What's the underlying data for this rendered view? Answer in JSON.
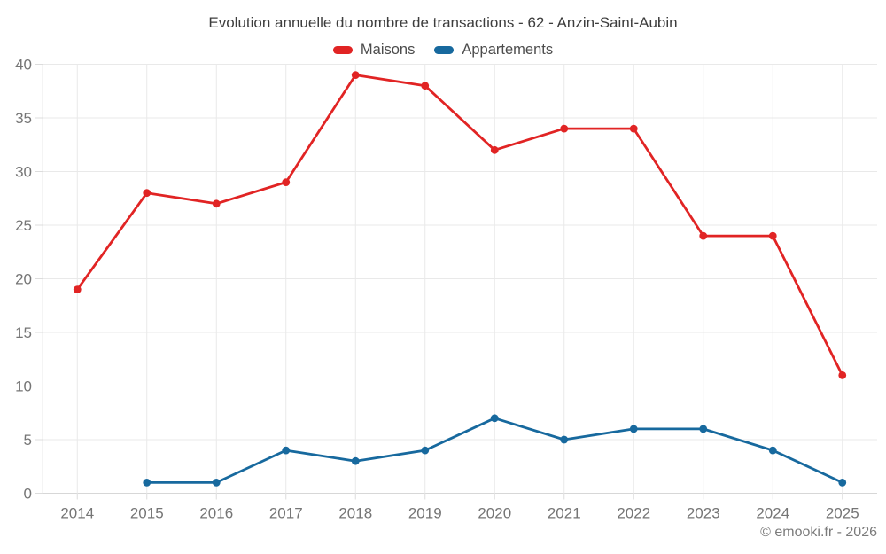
{
  "page": {
    "copyright": "© emooki.fr - 2026"
  },
  "chart_data": {
    "type": "line",
    "title": "Evolution annuelle du nombre de transactions - 62 - Anzin-Saint-Aubin",
    "xlabel": "",
    "ylabel": "",
    "categories": [
      "2014",
      "2015",
      "2016",
      "2017",
      "2018",
      "2019",
      "2020",
      "2021",
      "2022",
      "2023",
      "2024",
      "2025"
    ],
    "series": [
      {
        "name": "Maisons",
        "color": "#e12424",
        "values": [
          19,
          28,
          27,
          29,
          39,
          38,
          32,
          34,
          34,
          24,
          24,
          11
        ]
      },
      {
        "name": "Appartements",
        "color": "#17699e",
        "values": [
          null,
          1,
          1,
          4,
          3,
          4,
          7,
          5,
          6,
          6,
          4,
          1
        ]
      }
    ],
    "ylim": [
      0,
      40
    ],
    "y_ticks": [
      0,
      5,
      10,
      15,
      20,
      25,
      30,
      35,
      40
    ],
    "grid": true,
    "legend_position": "top",
    "colors": {
      "grid": "#e9e9e9",
      "axis_line": "#d7d7d7",
      "tick_mark": "#dcdcdc",
      "tick_text": "#757575",
      "title_text": "#3d3d3d",
      "legend_text": "#4c4c4c",
      "copyright_text": "#7b7b7b",
      "background": "#ffffff"
    }
  }
}
